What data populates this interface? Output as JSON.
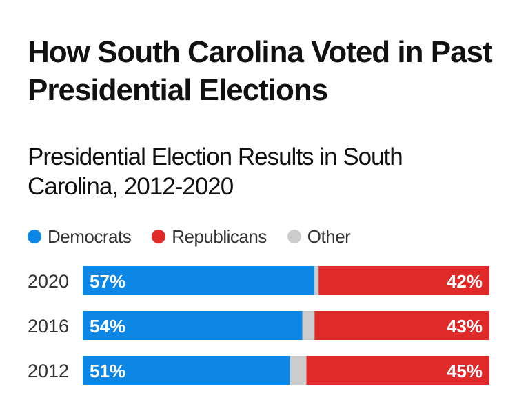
{
  "title": "How South Carolina Voted in Past Presidential Elections",
  "chart_data": {
    "type": "bar",
    "stacked": true,
    "orientation": "horizontal",
    "title": "Presidential Election Results in South Carolina, 2012-2020",
    "categories": [
      "2020",
      "2016",
      "2012"
    ],
    "series": [
      {
        "name": "Democrats",
        "color": "#0d87e6",
        "values": [
          57,
          54,
          51
        ]
      },
      {
        "name": "Other",
        "color": "#cccccc",
        "values": [
          1,
          3,
          4
        ]
      },
      {
        "name": "Republicans",
        "color": "#e02a2a",
        "values": [
          42,
          43,
          45
        ]
      }
    ],
    "data_labels": {
      "Democrats": [
        "57%",
        "54%",
        "51%"
      ],
      "Republicans": [
        "42%",
        "43%",
        "45%"
      ]
    },
    "legend": {
      "position": "top-left",
      "items": [
        {
          "label": "Democrats",
          "color": "#0d87e6"
        },
        {
          "label": "Republicans",
          "color": "#e02a2a"
        },
        {
          "label": "Other",
          "color": "#cccccc"
        }
      ]
    },
    "xlim": [
      0,
      100
    ],
    "grid": false
  }
}
